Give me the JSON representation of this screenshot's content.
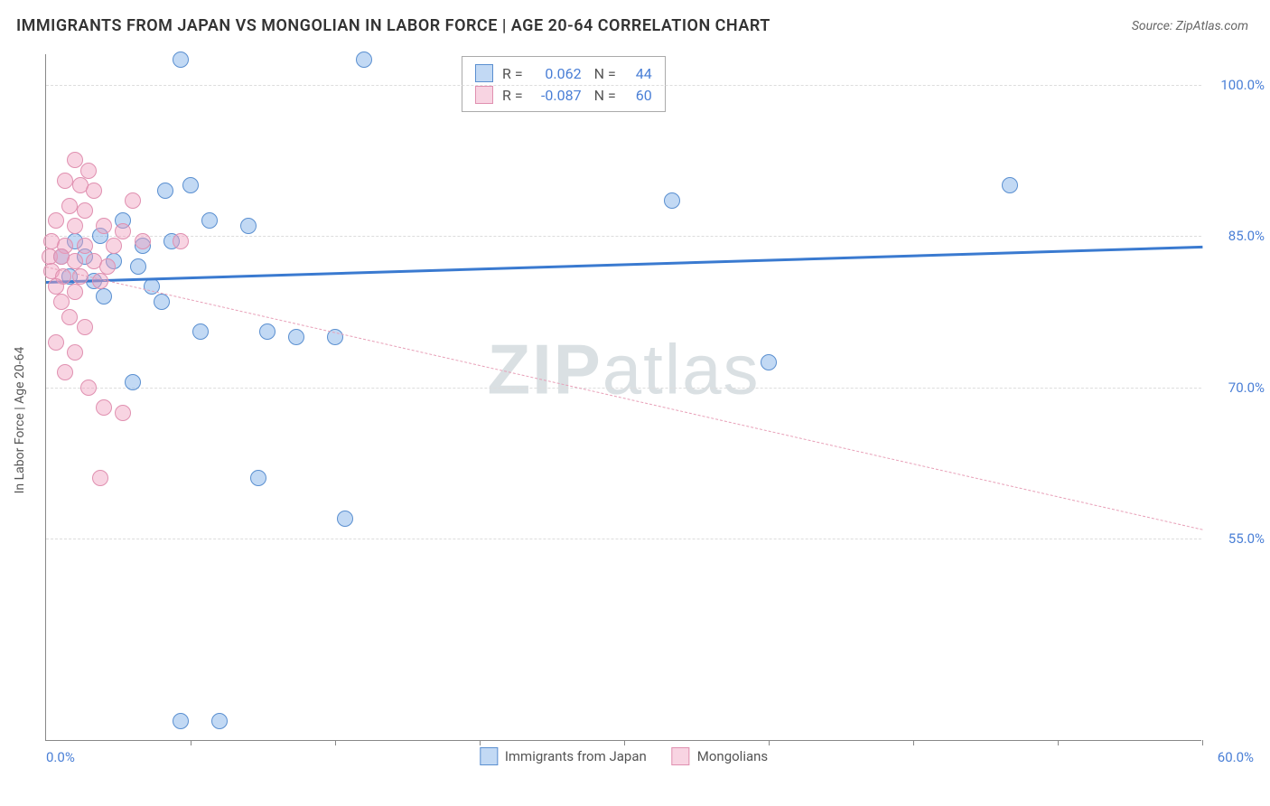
{
  "header": {
    "title": "IMMIGRANTS FROM JAPAN VS MONGOLIAN IN LABOR FORCE | AGE 20-64 CORRELATION CHART",
    "source": "Source: ZipAtlas.com"
  },
  "chart": {
    "type": "scatter",
    "y_axis_title": "In Labor Force | Age 20-64",
    "x_min": 0.0,
    "x_max": 60.0,
    "x_label_min": "0.0%",
    "x_label_max": "60.0%",
    "y_min": 35.0,
    "y_max": 103.0,
    "y_ticks": [
      55.0,
      70.0,
      85.0,
      100.0
    ],
    "y_tick_labels": [
      "55.0%",
      "70.0%",
      "85.0%",
      "100.0%"
    ],
    "x_tick_positions": [
      7.5,
      15,
      22.5,
      30,
      37.5,
      45,
      52.5,
      60
    ],
    "grid_color": "#dddddd",
    "axis_color": "#888888",
    "label_color": "#4a7fd6",
    "background_color": "#ffffff",
    "watermark": "ZIPatlas",
    "series": [
      {
        "name": "Immigrants from Japan",
        "color_fill": "rgba(120,170,230,0.45)",
        "color_border": "#5a8fd0",
        "marker_size": 18,
        "trend": {
          "x1": 0,
          "y1": 80.5,
          "x2": 60,
          "y2": 84.0,
          "color": "#3a7ad0",
          "width": 3,
          "dashed": false
        },
        "stats": {
          "R": "0.062",
          "N": "44"
        },
        "points": [
          {
            "x": 7.0,
            "y": 102.5
          },
          {
            "x": 16.5,
            "y": 102.5
          },
          {
            "x": 6.2,
            "y": 89.5
          },
          {
            "x": 7.5,
            "y": 90.0
          },
          {
            "x": 50.0,
            "y": 90.0
          },
          {
            "x": 32.5,
            "y": 88.5
          },
          {
            "x": 4.0,
            "y": 86.5
          },
          {
            "x": 8.5,
            "y": 86.5
          },
          {
            "x": 10.5,
            "y": 86.0
          },
          {
            "x": 1.5,
            "y": 84.5
          },
          {
            "x": 2.8,
            "y": 85.0
          },
          {
            "x": 5.0,
            "y": 84.0
          },
          {
            "x": 6.5,
            "y": 84.5
          },
          {
            "x": 0.8,
            "y": 83.0
          },
          {
            "x": 2.0,
            "y": 83.0
          },
          {
            "x": 3.5,
            "y": 82.5
          },
          {
            "x": 4.8,
            "y": 82.0
          },
          {
            "x": 1.2,
            "y": 81.0
          },
          {
            "x": 2.5,
            "y": 80.5
          },
          {
            "x": 5.5,
            "y": 80.0
          },
          {
            "x": 3.0,
            "y": 79.0
          },
          {
            "x": 6.0,
            "y": 78.5
          },
          {
            "x": 8.0,
            "y": 75.5
          },
          {
            "x": 11.5,
            "y": 75.5
          },
          {
            "x": 13.0,
            "y": 75.0
          },
          {
            "x": 15.0,
            "y": 75.0
          },
          {
            "x": 37.5,
            "y": 72.5
          },
          {
            "x": 4.5,
            "y": 70.5
          },
          {
            "x": 11.0,
            "y": 61.0
          },
          {
            "x": 15.5,
            "y": 57.0
          },
          {
            "x": 7.0,
            "y": 37.0
          },
          {
            "x": 9.0,
            "y": 37.0
          }
        ]
      },
      {
        "name": "Mongolians",
        "color_fill": "rgba(240,160,190,0.45)",
        "color_border": "#e090b0",
        "marker_size": 18,
        "trend": {
          "x1": 0,
          "y1": 82.0,
          "x2": 60,
          "y2": 56.0,
          "color": "#e8a0b8",
          "width": 1.5,
          "dashed": true
        },
        "stats": {
          "R": "-0.087",
          "N": "60"
        },
        "points": [
          {
            "x": 1.5,
            "y": 92.5
          },
          {
            "x": 2.2,
            "y": 91.5
          },
          {
            "x": 1.0,
            "y": 90.5
          },
          {
            "x": 1.8,
            "y": 90.0
          },
          {
            "x": 2.5,
            "y": 89.5
          },
          {
            "x": 4.5,
            "y": 88.5
          },
          {
            "x": 1.2,
            "y": 88.0
          },
          {
            "x": 2.0,
            "y": 87.5
          },
          {
            "x": 0.5,
            "y": 86.5
          },
          {
            "x": 1.5,
            "y": 86.0
          },
          {
            "x": 3.0,
            "y": 86.0
          },
          {
            "x": 4.0,
            "y": 85.5
          },
          {
            "x": 0.3,
            "y": 84.5
          },
          {
            "x": 1.0,
            "y": 84.0
          },
          {
            "x": 2.0,
            "y": 84.0
          },
          {
            "x": 3.5,
            "y": 84.0
          },
          {
            "x": 5.0,
            "y": 84.5
          },
          {
            "x": 7.0,
            "y": 84.5
          },
          {
            "x": 0.2,
            "y": 83.0
          },
          {
            "x": 0.8,
            "y": 83.0
          },
          {
            "x": 1.5,
            "y": 82.5
          },
          {
            "x": 2.5,
            "y": 82.5
          },
          {
            "x": 3.2,
            "y": 82.0
          },
          {
            "x": 0.3,
            "y": 81.5
          },
          {
            "x": 0.9,
            "y": 81.0
          },
          {
            "x": 1.8,
            "y": 81.0
          },
          {
            "x": 2.8,
            "y": 80.5
          },
          {
            "x": 0.5,
            "y": 80.0
          },
          {
            "x": 1.5,
            "y": 79.5
          },
          {
            "x": 0.8,
            "y": 78.5
          },
          {
            "x": 1.2,
            "y": 77.0
          },
          {
            "x": 2.0,
            "y": 76.0
          },
          {
            "x": 0.5,
            "y": 74.5
          },
          {
            "x": 1.5,
            "y": 73.5
          },
          {
            "x": 1.0,
            "y": 71.5
          },
          {
            "x": 2.2,
            "y": 70.0
          },
          {
            "x": 3.0,
            "y": 68.0
          },
          {
            "x": 4.0,
            "y": 67.5
          },
          {
            "x": 2.8,
            "y": 61.0
          }
        ]
      }
    ],
    "bottom_legend": [
      {
        "swatch": "blue",
        "label": "Immigrants from Japan"
      },
      {
        "swatch": "pink",
        "label": "Mongolians"
      }
    ]
  }
}
